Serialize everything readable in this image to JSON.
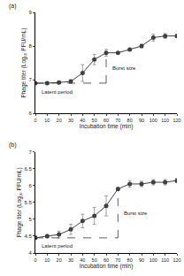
{
  "chart_data": [
    {
      "type": "line",
      "label": "(a)",
      "x_label": "Incubation time (min)",
      "y_label": "Phage titer (Log₁₀ PFU/mL)",
      "x": [
        0,
        10,
        20,
        30,
        40,
        50,
        60,
        70,
        80,
        90,
        100,
        110,
        120
      ],
      "values": [
        6.9,
        6.9,
        6.92,
        6.95,
        7.2,
        7.6,
        7.8,
        7.8,
        7.9,
        8.0,
        8.25,
        8.3,
        8.3
      ],
      "errors": [
        0.03,
        0.03,
        0.04,
        0.05,
        0.25,
        0.15,
        0.1,
        0.03,
        0.04,
        0.05,
        0.1,
        0.07,
        0.05
      ],
      "color": "#404040",
      "marker": "circle",
      "xlim": [
        0,
        120
      ],
      "xticks": [
        0,
        10,
        20,
        30,
        40,
        50,
        60,
        70,
        80,
        90,
        100,
        110,
        120
      ],
      "ylim": [
        6,
        9
      ],
      "yticks": [
        6,
        7,
        8,
        9
      ],
      "latent_period_end": 60,
      "annotations": [
        {
          "text": "Latent period"
        },
        {
          "text": "Burst size"
        }
      ]
    },
    {
      "type": "line",
      "label": "(b)",
      "x_label": "Incubation time (min)",
      "y_label": "Phage titer (Log₁₀ PFU/mL)",
      "x": [
        0,
        10,
        20,
        30,
        40,
        50,
        60,
        70,
        80,
        90,
        100,
        110,
        120
      ],
      "values": [
        4.45,
        4.5,
        4.55,
        4.7,
        4.95,
        5.1,
        5.4,
        5.9,
        6.05,
        6.05,
        6.1,
        6.1,
        6.15
      ],
      "errors": [
        0.05,
        0.05,
        0.1,
        0.15,
        0.2,
        0.25,
        0.3,
        0.05,
        0.1,
        0.08,
        0.08,
        0.08,
        0.06
      ],
      "color": "#404040",
      "marker": "circle",
      "xlim": [
        0,
        120
      ],
      "xticks": [
        0,
        10,
        20,
        30,
        40,
        50,
        60,
        70,
        80,
        90,
        100,
        110,
        120
      ],
      "ylim": [
        4,
        7
      ],
      "yticks": [
        4,
        4.5,
        5,
        5.5,
        6,
        6.5,
        7
      ],
      "latent_period_end": 70,
      "annotations": [
        {
          "text": "Latent period"
        },
        {
          "text": "Burst size"
        }
      ]
    }
  ]
}
